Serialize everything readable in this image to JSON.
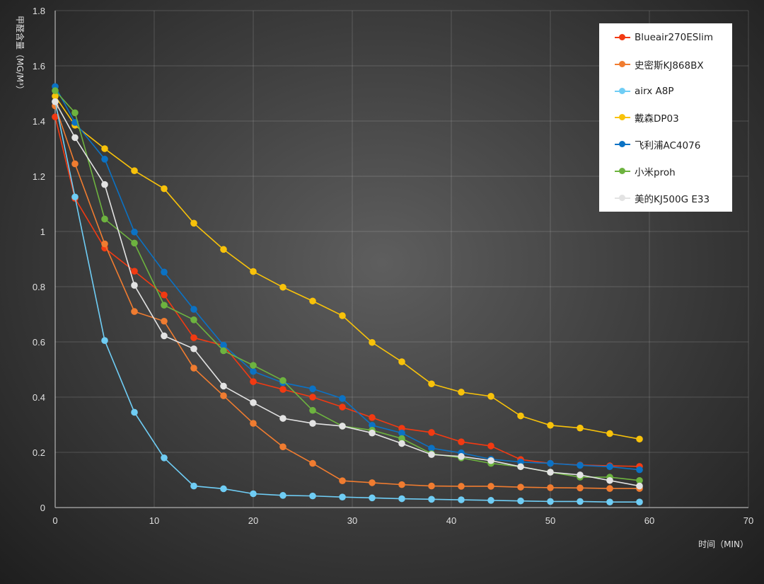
{
  "chart_data": {
    "type": "line",
    "title": "",
    "xlabel": "时间（MIN）",
    "ylabel": "甲醛含量（MG/M³）",
    "xlim": [
      0,
      70
    ],
    "ylim": [
      0,
      1.8
    ],
    "xticks": [
      "0",
      "10",
      "20",
      "30",
      "40",
      "50",
      "60",
      "70"
    ],
    "yticks": [
      "0",
      "0.2",
      "0.4",
      "0.6",
      "0.8",
      "1",
      "1.2",
      "1.4",
      "1.6",
      "1.8"
    ],
    "grid": true,
    "legend_position": "top-right",
    "x": [
      0,
      2,
      5,
      8,
      11,
      14,
      17,
      20,
      23,
      26,
      29,
      32,
      35,
      38,
      41,
      44,
      47,
      50,
      53,
      56,
      59
    ],
    "series": [
      {
        "name": "Blueair270ESlim",
        "color": "#f23a12",
        "values": [
          1.415,
          1.12,
          0.94,
          0.856,
          0.77,
          0.615,
          0.587,
          0.456,
          0.428,
          0.4,
          0.364,
          0.326,
          0.287,
          0.272,
          0.238,
          0.223,
          0.174,
          0.16,
          0.154,
          0.151,
          0.149
        ]
      },
      {
        "name": "史密斯KJ868BX",
        "color": "#f07c30",
        "values": [
          1.455,
          1.245,
          0.955,
          0.71,
          0.675,
          0.505,
          0.405,
          0.305,
          0.22,
          0.16,
          0.097,
          0.09,
          0.083,
          0.078,
          0.077,
          0.077,
          0.074,
          0.072,
          0.071,
          0.069,
          0.069
        ]
      },
      {
        "name": "airx A8P",
        "color": "#6fcdf5",
        "values": [
          1.47,
          1.125,
          0.605,
          0.345,
          0.18,
          0.078,
          0.068,
          0.05,
          0.044,
          0.042,
          0.038,
          0.035,
          0.032,
          0.03,
          0.028,
          0.026,
          0.024,
          0.022,
          0.022,
          0.02,
          0.02
        ]
      },
      {
        "name": "戴森DP03",
        "color": "#f8c20a",
        "values": [
          1.49,
          1.385,
          1.3,
          1.22,
          1.155,
          1.03,
          0.935,
          0.855,
          0.798,
          0.748,
          0.695,
          0.598,
          0.528,
          0.448,
          0.418,
          0.403,
          0.332,
          0.298,
          0.288,
          0.268,
          0.248
        ]
      },
      {
        "name": "飞利浦AC4076",
        "color": "#0b72c4",
        "values": [
          1.525,
          1.395,
          1.262,
          0.998,
          0.853,
          0.718,
          0.588,
          0.493,
          0.452,
          0.43,
          0.395,
          0.298,
          0.27,
          0.215,
          0.198,
          0.175,
          0.165,
          0.16,
          0.153,
          0.148,
          0.137
        ]
      },
      {
        "name": "小米proh",
        "color": "#6db33f",
        "values": [
          1.51,
          1.43,
          1.045,
          0.958,
          0.733,
          0.68,
          0.568,
          0.515,
          0.46,
          0.352,
          0.295,
          0.28,
          0.25,
          0.195,
          0.18,
          0.16,
          0.148,
          0.128,
          0.11,
          0.11,
          0.098
        ]
      },
      {
        "name": "美的KJ500G E33",
        "color": "#e3e3e3",
        "values": [
          1.47,
          1.34,
          1.17,
          0.805,
          0.622,
          0.575,
          0.44,
          0.38,
          0.323,
          0.305,
          0.295,
          0.27,
          0.232,
          0.192,
          0.185,
          0.17,
          0.148,
          0.128,
          0.118,
          0.098,
          0.078
        ]
      }
    ]
  }
}
